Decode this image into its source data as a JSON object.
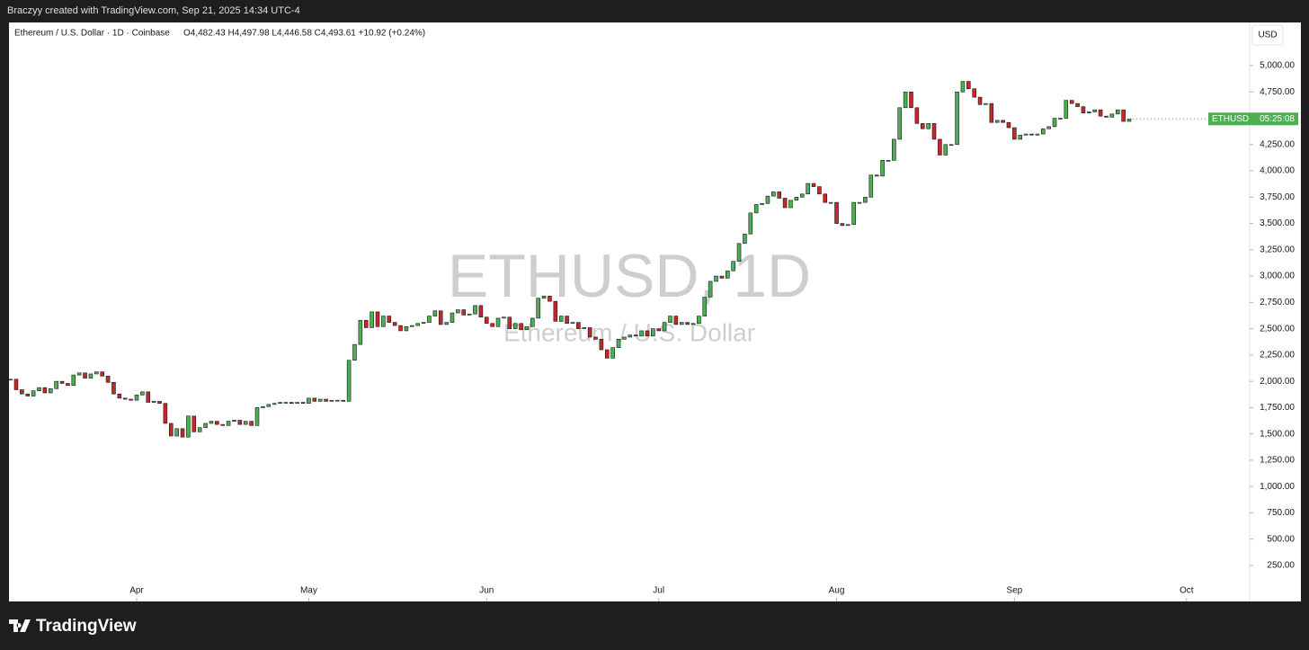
{
  "header": {
    "byline": "Braczyy created with TradingView.com, Sep 21, 2025 14:34 UTC-4"
  },
  "chart_data": {
    "type": "candlestick",
    "legend": "Ethereum / U.S. Dollar · 1D · Coinbase",
    "ohlc": "O4,482.43 H4,497.98 L4,446.58 C4,493.61 +10.92 (+0.24%)",
    "currency": "USD",
    "watermark": "ETHUSD, 1D",
    "watermark_subtitle": "Ethereum / U.S. Dollar",
    "badge_symbol": "ETHUSD",
    "badge_time": "05:25:08",
    "up_color": "#4caf50",
    "down_color": "#c62828",
    "values": [
      2020,
      1920,
      1880,
      1860,
      1910,
      1940,
      1890,
      1930,
      2000,
      1980,
      1960,
      2060,
      2080,
      2030,
      2070,
      2090,
      2050,
      1990,
      1880,
      1840,
      1830,
      1820,
      1870,
      1900,
      1800,
      1810,
      1790,
      1600,
      1480,
      1550,
      1470,
      1670,
      1520,
      1560,
      1600,
      1620,
      1590,
      1580,
      1620,
      1630,
      1590,
      1620,
      1580,
      1750,
      1760,
      1780,
      1790,
      1800,
      1800,
      1790,
      1800,
      1790,
      1840,
      1810,
      1830,
      1810,
      1820,
      1820,
      1810,
      2200,
      2350,
      2580,
      2510,
      2660,
      2520,
      2620,
      2560,
      2530,
      2480,
      2520,
      2530,
      2550,
      2560,
      2620,
      2670,
      2540,
      2560,
      2650,
      2680,
      2630,
      2640,
      2720,
      2610,
      2550,
      2520,
      2600,
      2610,
      2500,
      2550,
      2490,
      2520,
      2600,
      2790,
      2810,
      2760,
      2570,
      2620,
      2550,
      2560,
      2500,
      2510,
      2420,
      2400,
      2300,
      2220,
      2320,
      2400,
      2420,
      2440,
      2430,
      2480,
      2430,
      2500,
      2480,
      2560,
      2620,
      2540,
      2560,
      2540,
      2550,
      2620,
      2800,
      2950,
      3000,
      2980,
      3050,
      3140,
      3310,
      3400,
      3600,
      3680,
      3690,
      3760,
      3800,
      3740,
      3650,
      3720,
      3750,
      3780,
      3880,
      3850,
      3780,
      3700,
      3700,
      3500,
      3480,
      3490,
      3700,
      3700,
      3750,
      3960,
      3950,
      4100,
      4100,
      4300,
      4600,
      4750,
      4600,
      4450,
      4400,
      4450,
      4300,
      4150,
      4250,
      4250,
      4750,
      4850,
      4780,
      4700,
      4630,
      4640,
      4460,
      4480,
      4460,
      4410,
      4300,
      4340,
      4350,
      4340,
      4350,
      4400,
      4420,
      4500,
      4500,
      4670,
      4640,
      4610,
      4550,
      4560,
      4580,
      4520,
      4510,
      4540,
      4580,
      4470,
      4493.61
    ],
    "xlim": [
      -0.25,
      216
    ],
    "xticks": [
      {
        "value": 22,
        "label": "Apr"
      },
      {
        "value": 52,
        "label": "May"
      },
      {
        "value": 83,
        "label": "Jun"
      },
      {
        "value": 113,
        "label": "Jul"
      },
      {
        "value": 144,
        "label": "Aug"
      },
      {
        "value": 175,
        "label": "Sep"
      },
      {
        "value": 205,
        "label": "Oct"
      }
    ],
    "ylim": [
      -92,
      5410
    ],
    "yticks": [
      {
        "value": 250,
        "label": "250.00"
      },
      {
        "value": 500,
        "label": "500.00"
      },
      {
        "value": 750,
        "label": "750.00"
      },
      {
        "value": 1000,
        "label": "1,000.00"
      },
      {
        "value": 1250,
        "label": "1,250.00"
      },
      {
        "value": 1500,
        "label": "1,500.00"
      },
      {
        "value": 1750,
        "label": "1,750.00"
      },
      {
        "value": 2000,
        "label": "2,000.00"
      },
      {
        "value": 2250,
        "label": "2,250.00"
      },
      {
        "value": 2500,
        "label": "2,500.00"
      },
      {
        "value": 2750,
        "label": "2,750.00"
      },
      {
        "value": 3000,
        "label": "3,000.00"
      },
      {
        "value": 3250,
        "label": "3,250.00"
      },
      {
        "value": 3500,
        "label": "3,500.00"
      },
      {
        "value": 3750,
        "label": "3,750.00"
      },
      {
        "value": 4000,
        "label": "4,000.00"
      },
      {
        "value": 4250,
        "label": "4,250.00"
      },
      {
        "value": 4500,
        "label": "4,500.00"
      },
      {
        "value": 4750,
        "label": "4,750.00"
      },
      {
        "value": 5000,
        "label": "5,000.00"
      }
    ]
  },
  "footer": {
    "brand": "TradingView"
  }
}
